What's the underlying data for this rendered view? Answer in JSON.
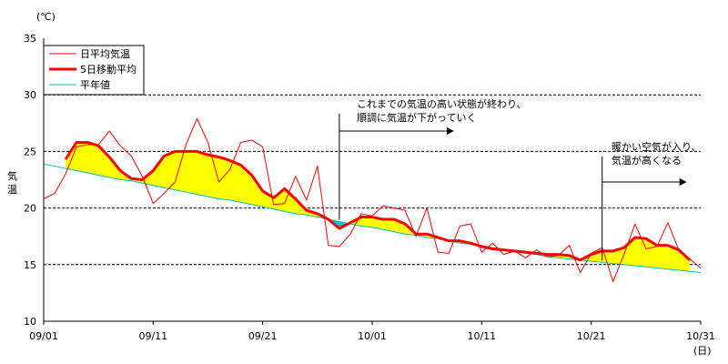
{
  "chart_data": {
    "type": "line",
    "unit_label": "(℃)",
    "ylabel": "気温",
    "xlabel_unit": "(日)",
    "ylim": [
      10,
      35
    ],
    "y_ticks": [
      "10",
      "15",
      "20",
      "25",
      "30",
      "35"
    ],
    "x_tick_labels": [
      "09/01",
      "09/11",
      "09/21",
      "10/01",
      "10/11",
      "10/21",
      "10/31"
    ],
    "grid": "horizontal dashed",
    "legend_position": "top-left",
    "x_days": [
      1,
      2,
      3,
      4,
      5,
      6,
      7,
      8,
      9,
      10,
      11,
      12,
      13,
      14,
      15,
      16,
      17,
      18,
      19,
      20,
      21,
      22,
      23,
      24,
      25,
      26,
      27,
      28,
      29,
      30,
      31,
      32,
      33,
      34,
      35,
      36,
      37,
      38,
      39,
      40,
      41,
      42,
      43,
      44,
      45,
      46,
      47,
      48,
      49,
      50,
      51,
      52,
      53,
      54,
      55,
      56,
      57,
      58,
      59,
      60,
      61
    ],
    "series": [
      {
        "name": "日平均気温",
        "color": "#ff0000",
        "values": [
          20.8,
          21.3,
          23.0,
          25.4,
          25.6,
          25.6,
          26.8,
          25.5,
          24.6,
          22.8,
          20.4,
          21.3,
          22.3,
          25.6,
          27.9,
          25.8,
          22.3,
          23.4,
          25.8,
          26.0,
          25.4,
          20.3,
          20.4,
          22.8,
          20.7,
          23.7,
          16.7,
          16.6,
          17.7,
          19.5,
          19.3,
          20.2,
          20.0,
          19.8,
          17.5,
          20.0,
          16.1,
          16.0,
          18.4,
          18.6,
          16.1,
          16.9,
          15.9,
          16.2,
          15.6,
          16.3,
          15.7,
          15.8,
          16.7,
          14.3,
          16.0,
          16.5,
          13.5,
          15.9,
          18.6,
          16.4,
          16.6,
          18.7,
          16.3,
          15.5,
          14.7
        ]
      },
      {
        "name": "5日移動平均",
        "color": "#ff0000",
        "values": [
          null,
          null,
          24.3,
          25.8,
          25.8,
          25.5,
          24.5,
          23.3,
          22.6,
          22.5,
          23.3,
          24.6,
          25.0,
          25.0,
          25.0,
          24.7,
          24.5,
          24.2,
          23.8,
          22.9,
          21.5,
          20.9,
          21.7,
          20.8,
          19.8,
          19.5,
          19.0,
          18.2,
          18.7,
          19.2,
          19.2,
          19.0,
          19.0,
          18.6,
          17.7,
          17.7,
          17.4,
          17.1,
          17.1,
          16.9,
          16.6,
          16.4,
          16.3,
          16.2,
          16.1,
          16.0,
          15.9,
          15.9,
          15.8,
          15.4,
          15.9,
          16.2,
          16.2,
          16.5,
          17.4,
          17.3,
          16.7,
          16.7,
          16.3,
          15.4,
          null
        ]
      },
      {
        "name": "平年値",
        "color": "#00c0c0",
        "values": [
          23.9,
          23.7,
          23.5,
          23.3,
          23.1,
          22.9,
          22.7,
          22.5,
          22.4,
          22.2,
          22.0,
          21.8,
          21.6,
          21.4,
          21.2,
          21.0,
          20.8,
          20.7,
          20.5,
          20.3,
          20.1,
          19.9,
          19.7,
          19.5,
          19.4,
          19.2,
          19.0,
          18.8,
          18.6,
          18.4,
          18.3,
          18.1,
          17.9,
          17.7,
          17.6,
          17.4,
          17.3,
          17.1,
          16.9,
          16.8,
          16.6,
          16.4,
          16.3,
          16.2,
          16.0,
          15.9,
          15.7,
          15.6,
          15.5,
          15.4,
          15.3,
          15.2,
          15.1,
          15.0,
          14.9,
          14.8,
          14.7,
          14.6,
          14.5,
          14.4,
          14.3
        ]
      }
    ],
    "fill_above_color": "#ffff00",
    "fill_below_color": "#00c8d8",
    "annotations": [
      {
        "lines": [
          "これまでの気温の高い状態が終わり、",
          "順調に気温が下がっていく"
        ],
        "marker_day": 28
      },
      {
        "lines": [
          "暖かい空気が入り、",
          "気温が高くなる"
        ],
        "marker_day": 52
      }
    ]
  }
}
